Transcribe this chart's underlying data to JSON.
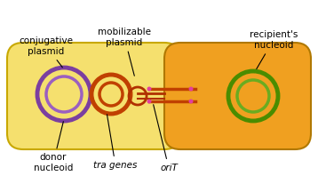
{
  "bg_color": "#ffffff",
  "donor_cell_color": "#f5e06e",
  "donor_cell_edge": "#c8a800",
  "recipient_cell_color": "#f0a020",
  "recipient_cell_edge": "#b07800",
  "conjugative_plasmid_outer_color": "#7b3fa0",
  "conjugative_plasmid_inner_color": "#9b5fc0",
  "mobilizable_plasmid_color": "#c04000",
  "mobilizable_plasmid_tail_color": "#b03000",
  "recipient_nucleoid_outer_color": "#4a8c00",
  "recipient_nucleoid_inner_color": "#6aac20",
  "pilus_color": "#c04000",
  "oriT_dot_color": "#e040a0",
  "pilus_bar_color": "#c04000",
  "label_color": "#000000",
  "title_text": "",
  "labels": {
    "donor_nucleoid": "donor\nnucleoid",
    "tra_genes": "tra genes",
    "oriT": "oriT",
    "conjugative_plasmid": "conjugative\nplasmid",
    "mobilizable_plasmid": "mobilizable\nplasmid",
    "recipients_nucleoid": "recipient's\nnucleoid"
  }
}
